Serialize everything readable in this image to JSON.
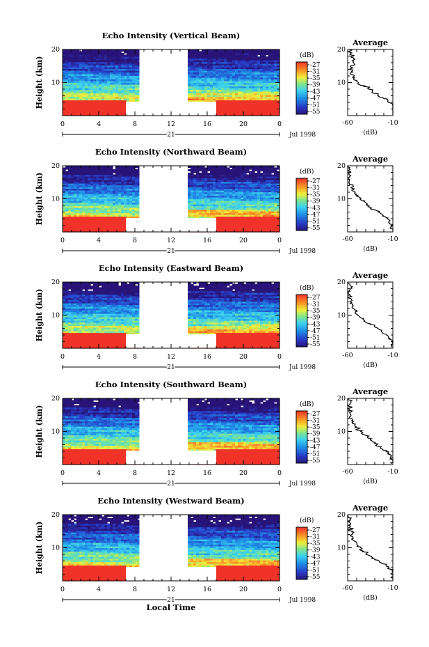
{
  "figure": {
    "xlabel": "Local Time",
    "date_label": "Jul 1998",
    "day_label": "21",
    "ylabel": "Height (km)",
    "colorbar_unit": "(dB)",
    "average_title": "Average",
    "average_xlabel": "(dB)"
  },
  "chart_data": [
    {
      "type": "heatmap",
      "title": "Echo Intensity (Vertical Beam)",
      "xlabel": "Local Time",
      "ylabel": "Height (km)",
      "x_ticks": [
        "0",
        "4",
        "8",
        "12",
        "16",
        "20",
        "0"
      ],
      "y_ticks": [
        "10",
        "20"
      ],
      "xlim": [
        0,
        24
      ],
      "ylim": [
        0,
        20
      ],
      "data_gaps_hours": [
        [
          8.5,
          13.8
        ]
      ],
      "ground_clutter_hours": [
        [
          0,
          7
        ],
        [
          17,
          24
        ]
      ],
      "colorbar": {
        "label": "(dB)",
        "ticks": [
          "-27",
          "-31",
          "-35",
          "-39",
          "-43",
          "-47",
          "-51",
          "-55"
        ],
        "range": [
          -57,
          -25
        ]
      },
      "average_profile": {
        "title": "Average",
        "xlabel": "(dB)",
        "x_ticks": [
          "-60",
          "-10"
        ],
        "y_ticks": [
          "10",
          "20"
        ],
        "height_km": [
          2,
          4,
          6,
          8,
          10,
          12,
          14,
          16,
          18,
          20
        ],
        "values_db": [
          -9,
          -13,
          -26,
          -36,
          -50,
          -54,
          -57,
          -54,
          -55,
          -58
        ]
      }
    },
    {
      "type": "heatmap",
      "title": "Echo Intensity (Northward Beam)",
      "xlabel": "Local Time",
      "ylabel": "Height (km)",
      "x_ticks": [
        "0",
        "4",
        "8",
        "12",
        "16",
        "20",
        "0"
      ],
      "y_ticks": [
        "10",
        "20"
      ],
      "xlim": [
        0,
        24
      ],
      "ylim": [
        0,
        20
      ],
      "data_gaps_hours": [
        [
          8.5,
          13.8
        ]
      ],
      "ground_clutter_hours": [
        [
          0,
          7
        ],
        [
          17,
          24
        ]
      ],
      "colorbar": {
        "label": "(dB)",
        "ticks": [
          "-27",
          "-31",
          "-35",
          "-39",
          "-43",
          "-47",
          "-51",
          "-55"
        ],
        "range": [
          -57,
          -25
        ]
      },
      "average_profile": {
        "title": "Average",
        "xlabel": "(dB)",
        "x_ticks": [
          "-60",
          "-10"
        ],
        "y_ticks": [
          "10",
          "20"
        ],
        "height_km": [
          2,
          4,
          6,
          8,
          10,
          12,
          14,
          16,
          18,
          20
        ],
        "values_db": [
          -11,
          -16,
          -27,
          -38,
          -47,
          -52,
          -56,
          -58,
          -57,
          -60
        ]
      }
    },
    {
      "type": "heatmap",
      "title": "Echo Intensity (Eastward Beam)",
      "xlabel": "Local Time",
      "ylabel": "Height (km)",
      "x_ticks": [
        "0",
        "4",
        "8",
        "12",
        "16",
        "20",
        "0"
      ],
      "y_ticks": [
        "10",
        "20"
      ],
      "xlim": [
        0,
        24
      ],
      "ylim": [
        0,
        20
      ],
      "data_gaps_hours": [
        [
          8.5,
          13.8
        ]
      ],
      "ground_clutter_hours": [
        [
          0,
          7
        ],
        [
          17,
          24
        ]
      ],
      "colorbar": {
        "label": "(dB)",
        "ticks": [
          "-27",
          "-31",
          "-35",
          "-39",
          "-43",
          "-47",
          "-51",
          "-55"
        ],
        "range": [
          -57,
          -25
        ]
      },
      "average_profile": {
        "title": "Average",
        "xlabel": "(dB)",
        "x_ticks": [
          "-60",
          "-10"
        ],
        "y_ticks": [
          "10",
          "20"
        ],
        "height_km": [
          2,
          4,
          6,
          8,
          10,
          12,
          14,
          16,
          18,
          20
        ],
        "values_db": [
          -11,
          -17,
          -27,
          -39,
          -48,
          -53,
          -56,
          -58,
          -57,
          -59
        ]
      }
    },
    {
      "type": "heatmap",
      "title": "Echo Intensity (Southward Beam)",
      "xlabel": "Local Time",
      "ylabel": "Height (km)",
      "x_ticks": [
        "0",
        "4",
        "8",
        "12",
        "16",
        "20",
        "0"
      ],
      "y_ticks": [
        "10",
        "20"
      ],
      "xlim": [
        0,
        24
      ],
      "ylim": [
        0,
        20
      ],
      "data_gaps_hours": [
        [
          8.5,
          13.8
        ]
      ],
      "ground_clutter_hours": [
        [
          0,
          7
        ],
        [
          17,
          24
        ]
      ],
      "colorbar": {
        "label": "(dB)",
        "ticks": [
          "-27",
          "-31",
          "-35",
          "-39",
          "-43",
          "-47",
          "-51",
          "-55"
        ],
        "range": [
          -57,
          -25
        ]
      },
      "average_profile": {
        "title": "Average",
        "xlabel": "(dB)",
        "x_ticks": [
          "-60",
          "-10"
        ],
        "y_ticks": [
          "10",
          "20"
        ],
        "height_km": [
          2,
          4,
          6,
          8,
          10,
          12,
          14,
          16,
          18,
          20
        ],
        "values_db": [
          -11,
          -17,
          -28,
          -38,
          -47,
          -52,
          -56,
          -57,
          -57,
          -59
        ]
      }
    },
    {
      "type": "heatmap",
      "title": "Echo Intensity (Westward Beam)",
      "xlabel": "Local Time",
      "ylabel": "Height (km)",
      "x_ticks": [
        "0",
        "4",
        "8",
        "12",
        "16",
        "20",
        "0"
      ],
      "y_ticks": [
        "10",
        "20"
      ],
      "xlim": [
        0,
        24
      ],
      "ylim": [
        0,
        20
      ],
      "data_gaps_hours": [
        [
          8.5,
          13.8
        ]
      ],
      "ground_clutter_hours": [
        [
          0,
          7
        ],
        [
          17,
          24
        ]
      ],
      "colorbar": {
        "label": "(dB)",
        "ticks": [
          "-27",
          "-31",
          "-35",
          "-39",
          "-43",
          "-47",
          "-51",
          "-55"
        ],
        "range": [
          -57,
          -25
        ]
      },
      "average_profile": {
        "title": "Average",
        "xlabel": "(dB)",
        "x_ticks": [
          "-60",
          "-10"
        ],
        "y_ticks": [
          "10",
          "20"
        ],
        "height_km": [
          2,
          4,
          6,
          8,
          10,
          12,
          14,
          16,
          18,
          20
        ],
        "values_db": [
          -10,
          -14,
          -27,
          -38,
          -47,
          -53,
          -56,
          -57,
          -58,
          -59
        ]
      }
    }
  ]
}
